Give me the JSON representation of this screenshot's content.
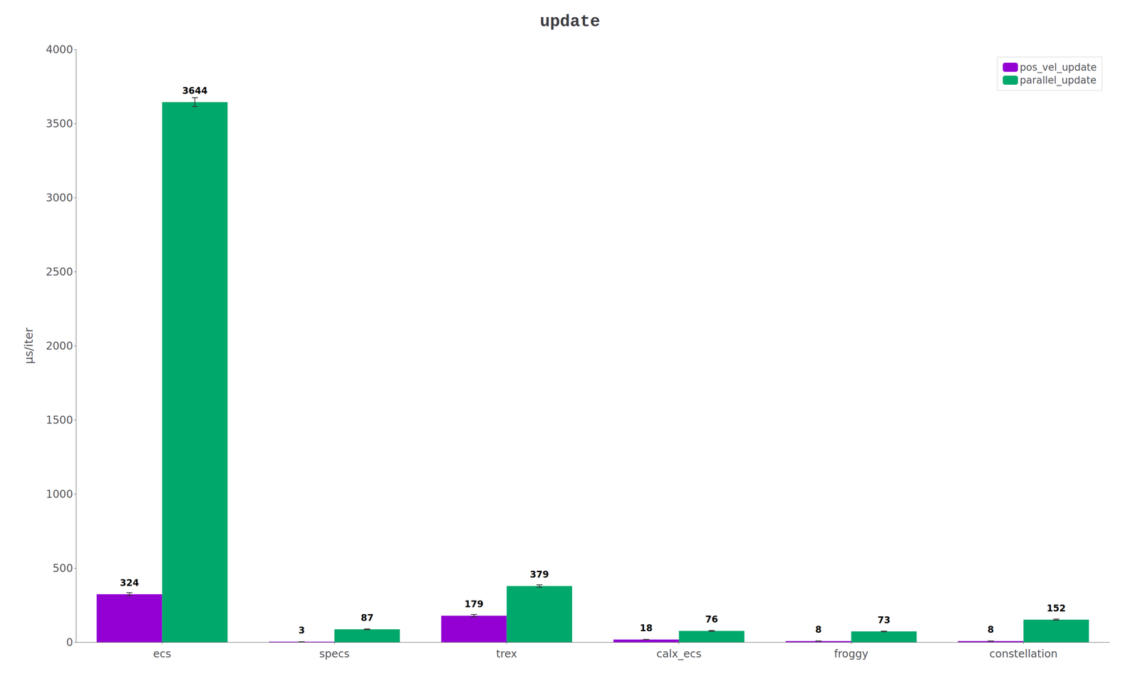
{
  "chart_data": {
    "type": "bar",
    "title": "update",
    "ylabel": "μs/iter",
    "categories": [
      "ecs",
      "specs",
      "trex",
      "calx_ecs",
      "froggy",
      "constellation"
    ],
    "series": [
      {
        "name": "pos_vel_update",
        "color": "#9400d3",
        "values": [
          324,
          3,
          179,
          18,
          8,
          8
        ],
        "errors": [
          10,
          0.3,
          8,
          1,
          0.5,
          0.5
        ]
      },
      {
        "name": "parallel_update",
        "color": "#00a86b",
        "values": [
          3644,
          87,
          379,
          76,
          73,
          152
        ],
        "errors": [
          30,
          3,
          8,
          3,
          2,
          4
        ]
      }
    ],
    "ylim": [
      0,
      4000
    ],
    "yticks": [
      0,
      500,
      1000,
      1500,
      2000,
      2500,
      3000,
      3500,
      4000
    ],
    "grid": false,
    "legend": "upper right",
    "data_labels": true
  }
}
